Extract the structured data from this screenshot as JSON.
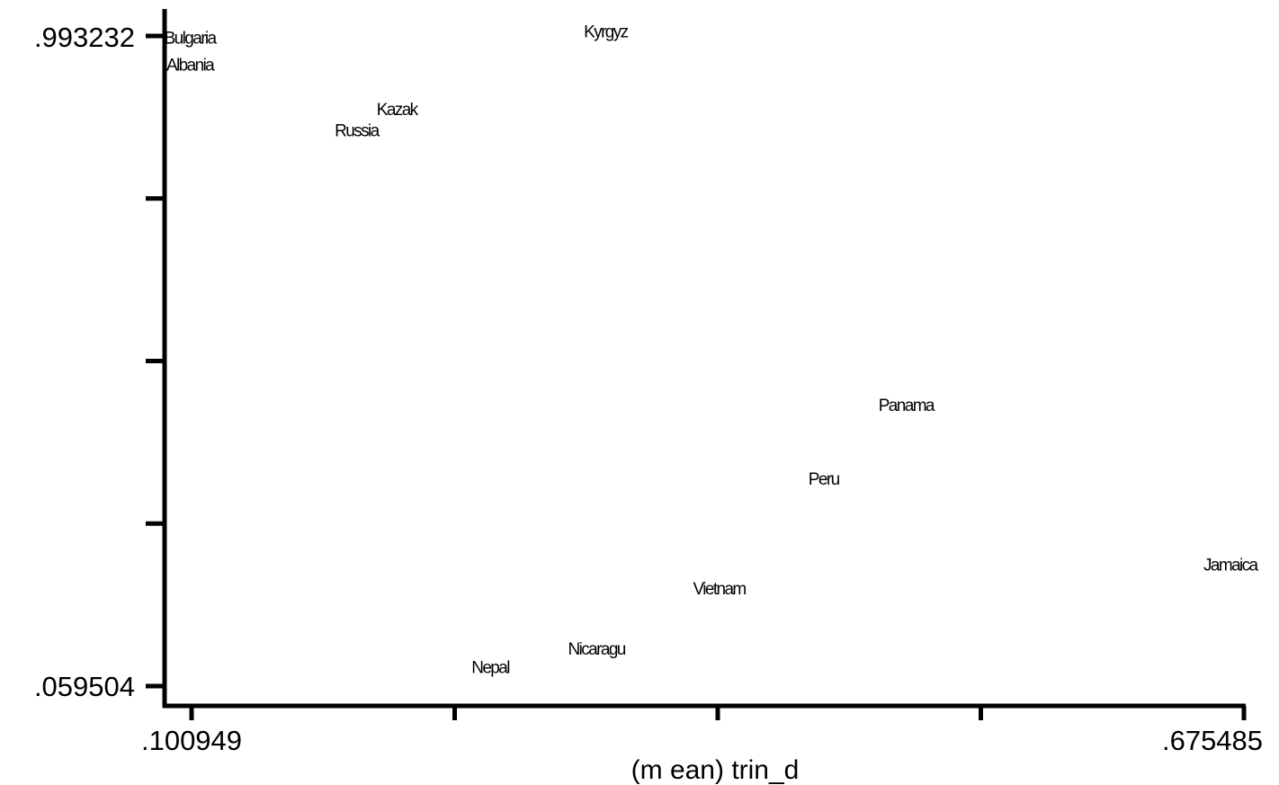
{
  "chart_data": {
    "type": "scatter",
    "xlabel": "(m ean) trin_d",
    "ylabel": "",
    "xlim": [
      0.100949,
      0.675485
    ],
    "ylim": [
      0.059504,
      0.993232
    ],
    "x_tick_labels": [
      ".100949",
      ".675485"
    ],
    "y_tick_labels": [
      ".993232",
      ".059504"
    ],
    "x_ticks": [
      0.100949,
      0.244583,
      0.388217,
      0.531851,
      0.675485
    ],
    "y_ticks": [
      0.059504,
      0.292936,
      0.526368,
      0.7598,
      0.993232
    ],
    "grid": false,
    "points": [
      {
        "label": "Bulgaria",
        "x": 0.1,
        "y": 0.989
      },
      {
        "label": "Albania",
        "x": 0.1,
        "y": 0.95
      },
      {
        "label": "Kyrgyz",
        "x": 0.327,
        "y": 0.998
      },
      {
        "label": "Kazak",
        "x": 0.213,
        "y": 0.886
      },
      {
        "label": "Russia",
        "x": 0.191,
        "y": 0.856
      },
      {
        "label": "Panama",
        "x": 0.491,
        "y": 0.461
      },
      {
        "label": "Peru",
        "x": 0.446,
        "y": 0.355
      },
      {
        "label": "Jamaica",
        "x": 0.668,
        "y": 0.232
      },
      {
        "label": "Vietnam",
        "x": 0.389,
        "y": 0.198
      },
      {
        "label": "Nicaragu",
        "x": 0.322,
        "y": 0.111
      },
      {
        "label": "Nepal",
        "x": 0.264,
        "y": 0.085
      }
    ]
  }
}
